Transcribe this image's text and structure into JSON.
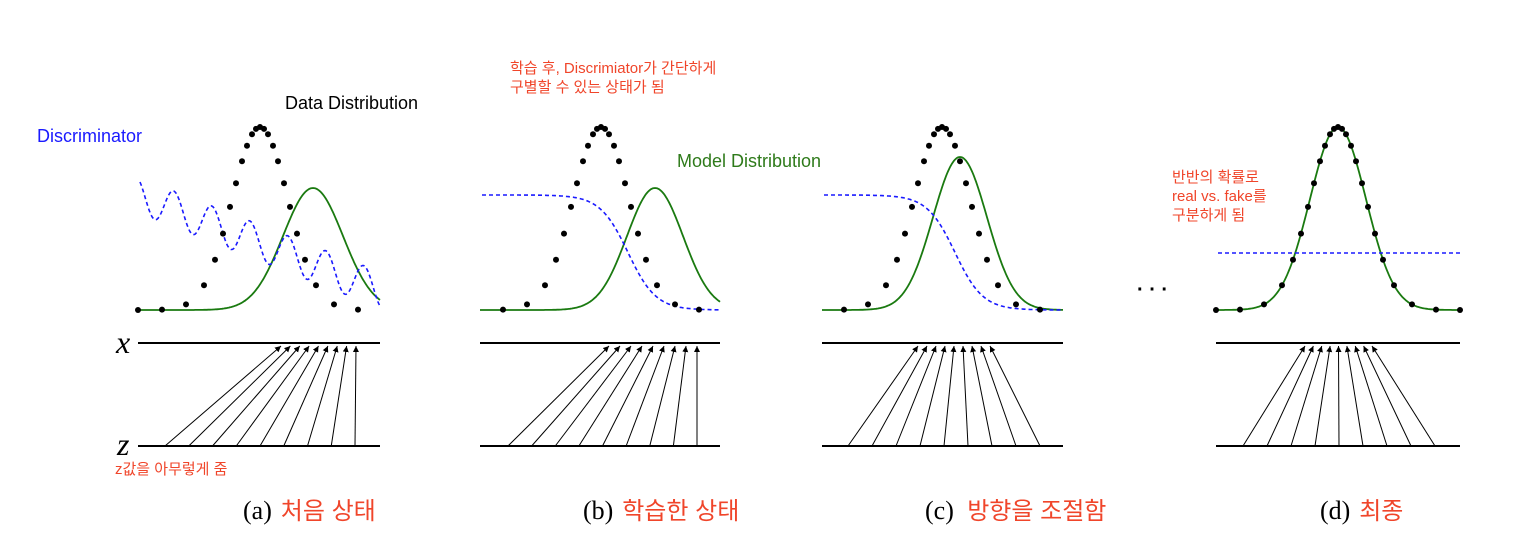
{
  "labels": {
    "data_distribution": "Data Distribution",
    "discriminator": "Discriminator",
    "model_distribution": "Model Distribution",
    "note_b": [
      "학습 후, Discrimiator가 간단하게",
      "구별할 수 있는 상태가 됨"
    ],
    "note_d": [
      "반반의 확률로",
      "real vs. fake를",
      "구분하게 됨"
    ],
    "note_z": "z값을 아무렇게 줌",
    "axis_x": "x",
    "axis_z": "z",
    "ellipsis": "· · ·"
  },
  "panels": [
    {
      "tag": "(a)",
      "caption": "처음 상태"
    },
    {
      "tag": "(b)",
      "caption": "학습한 상태"
    },
    {
      "tag": "(c)",
      "caption": "방향을 조절함"
    },
    {
      "tag": "(d)",
      "caption": "최종"
    }
  ],
  "colors": {
    "data": "#000000",
    "model": "#1a7a10",
    "discriminator": "#1a1aff",
    "annotation": "#f0452a"
  }
}
